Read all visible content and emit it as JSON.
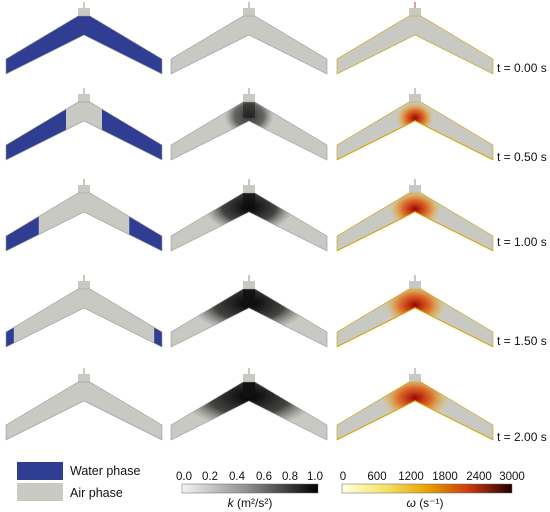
{
  "time_labels": [
    "t = 0.00 s",
    "t = 0.50 s",
    "t = 1.00 s",
    "t = 1.50 s",
    "t = 2.00 s"
  ],
  "legend": {
    "water_label": "Water phase",
    "air_label": "Air phase",
    "water_color": "#2f3e92",
    "air_color": "#c9c9c4"
  },
  "k_colorbar": {
    "ticks": [
      "0.0",
      "0.2",
      "0.4",
      "0.6",
      "0.8",
      "1.0"
    ],
    "title_var": "k",
    "title_units": "(m²/s²)"
  },
  "omega_colorbar": {
    "ticks": [
      "0",
      "600",
      "1200",
      "1800",
      "2400",
      "3000"
    ],
    "title_var": "ω",
    "title_units": "(s⁻¹)"
  },
  "colors": {
    "water": "#2f3e92",
    "air": "#c9c9c4",
    "turbulence_dark": "#111111",
    "omega_low": "#fff6a0",
    "omega_mid": "#e8a200",
    "omega_high": "#b01010"
  }
}
